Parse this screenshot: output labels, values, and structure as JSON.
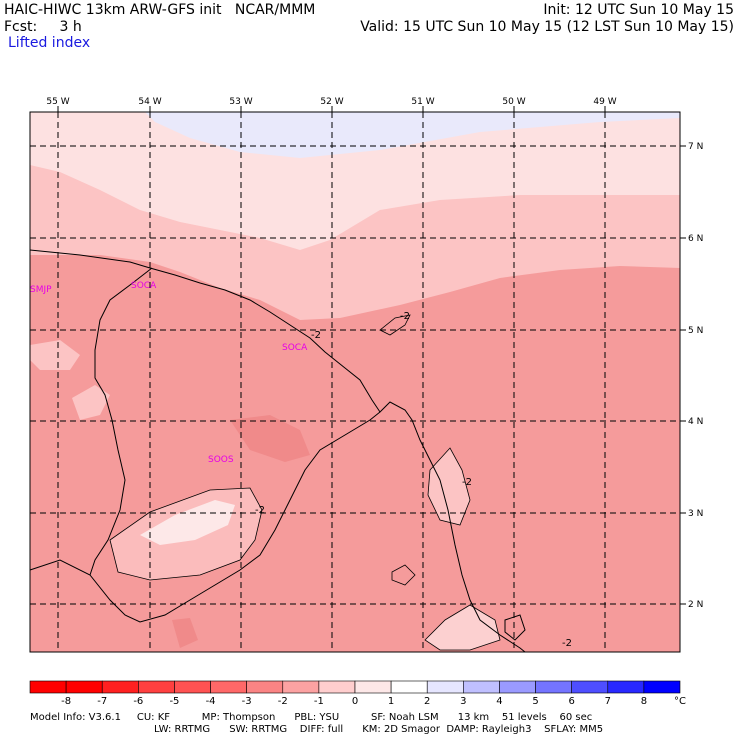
{
  "header": {
    "line1_left": "HAIC-HIWC 13km ARW-GFS init   NCAR/MMM",
    "line1_right": "Init: 12 UTC Sun 10 May 15",
    "line2_left": "Fcst:     3 h",
    "line2_right": "Valid: 15 UTC Sun 10 May 15 (12 LST Sun 10 May 15)",
    "field_name": "Lifted index"
  },
  "map": {
    "longitude_labels": [
      "55 W",
      "54 W",
      "53 W",
      "52 W",
      "51 W",
      "50 W",
      "49 W"
    ],
    "latitude_labels": [
      "7 N",
      "6 N",
      "5 N",
      "4 N",
      "3 N",
      "2 N"
    ],
    "stations": [
      "SMJP",
      "SOCA",
      "SOCA",
      "SOOS"
    ],
    "contour_labels": [
      "-2",
      "-2",
      "-2",
      "-2",
      "-2"
    ]
  },
  "colorbar": {
    "tick_labels": [
      "-8",
      "-7",
      "-6",
      "-5",
      "-4",
      "-3",
      "-2",
      "-1",
      "0",
      "1",
      "2",
      "3",
      "4",
      "5",
      "6",
      "7",
      "8"
    ],
    "unit": "°C",
    "colors": [
      "#ff0000",
      "#ff2020",
      "#ff4040",
      "#ff5252",
      "#ff6868",
      "#fa8484",
      "#fca2a2",
      "#ffcece",
      "#fde8e8",
      "#ffffff",
      "#e6e6ff",
      "#c0c0ff",
      "#9a9aff",
      "#7474ff",
      "#4e4eff",
      "#2828ff",
      "#0000ff"
    ]
  },
  "footer": {
    "line1": "Model Info: V3.6.1     CU: KF          MP: Thompson      PBL: YSU          SF: Noah LSM      13 km    51 levels    60 sec",
    "line2": "LW: RRTMG      SW: RRTMG    DIFF: full      KM: 2D Smagor  DAMP: Rayleigh3    SFLAY: MM5"
  }
}
